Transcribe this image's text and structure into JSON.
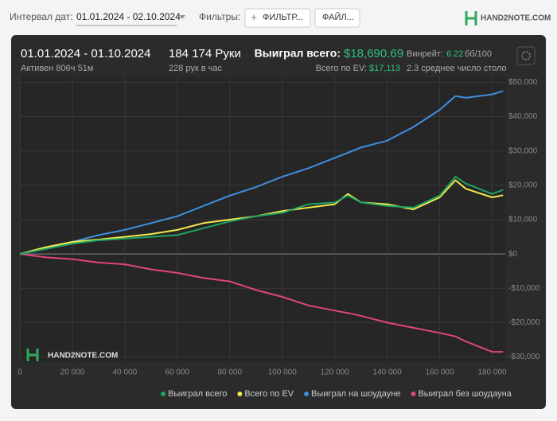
{
  "toolbar": {
    "interval_label": "Интервал дат:",
    "interval_value": "01.01.2024 - 02.10.2024",
    "filters_label": "Фильтры:",
    "filter_button": "ФИЛЬТР...",
    "file_button": "ФАЙЛ...",
    "logo": "HAND2NOTE.COM"
  },
  "header": {
    "date_range": "01.01.2024 - 01.10.2024",
    "active": "Активен 806ч 51м",
    "hands": "184 174 Руки",
    "rate": "228 рук в час",
    "won_label": "Выиграл всего:",
    "won_value": "$18,690.69",
    "ev_label": "Всего по EV:",
    "ev_value": "$17,113",
    "winrate_label": "Винрейт:",
    "winrate_value": "6.22",
    "winrate_unit": "бб/100",
    "tables": "2.3 среднее число столо"
  },
  "watermark": "HAND2NOTE.COM",
  "chart_data": {
    "type": "line",
    "x": [
      0,
      10000,
      20000,
      30000,
      40000,
      50000,
      60000,
      70000,
      80000,
      90000,
      100000,
      110000,
      120000,
      125000,
      130000,
      140000,
      150000,
      160000,
      166000,
      170000,
      180000,
      184174
    ],
    "series": [
      {
        "name": "Выиграл всего",
        "color": "#1fa463",
        "values": [
          0,
          1500,
          3000,
          4000,
          4500,
          5000,
          5500,
          7500,
          9500,
          11000,
          12000,
          14500,
          15000,
          17000,
          15000,
          14000,
          13500,
          17000,
          22500,
          20500,
          17500,
          18690.69
        ]
      },
      {
        "name": "Всего по EV",
        "color": "#f2e94e",
        "values": [
          0,
          2000,
          3500,
          4200,
          5000,
          5800,
          7000,
          9000,
          10000,
          11000,
          12500,
          13500,
          14500,
          17500,
          15000,
          14500,
          13000,
          16500,
          21500,
          19000,
          16500,
          17113
        ]
      },
      {
        "name": "Выиграл на шоудауне",
        "color": "#3f8fde",
        "values": [
          0,
          1500,
          3500,
          5500,
          7000,
          9000,
          11000,
          14000,
          17000,
          19500,
          22500,
          25000,
          28000,
          29500,
          31000,
          33000,
          37000,
          42000,
          46000,
          45500,
          46500,
          47500
        ]
      },
      {
        "name": "Выиграл без шоудауна",
        "color": "#e0457b",
        "values": [
          0,
          -1000,
          -1500,
          -2500,
          -3000,
          -4500,
          -5500,
          -7000,
          -8000,
          -10500,
          -12500,
          -15000,
          -16500,
          -17200,
          -18000,
          -20000,
          -21500,
          -23000,
          -24000,
          -25500,
          -28500,
          -28500
        ]
      }
    ],
    "xlim": [
      0,
      185000
    ],
    "ylim": [
      -31500,
      51500
    ],
    "xticks": [
      0,
      {
        "value": 20000,
        "label": "20 000"
      },
      {
        "value": 40000,
        "label": "40 000"
      },
      {
        "value": 60000,
        "label": "60 000"
      },
      {
        "value": 80000,
        "label": "80 000"
      },
      {
        "value": 100000,
        "label": "100 000"
      },
      {
        "value": 120000,
        "label": "120 000"
      },
      {
        "value": 140000,
        "label": "140 000"
      },
      {
        "value": 160000,
        "label": "160 000"
      },
      {
        "value": 180000,
        "label": "180 000"
      }
    ],
    "yticks": [
      {
        "value": -30000,
        "label": "-$30,000"
      },
      {
        "value": -20000,
        "label": "-$20,000"
      },
      {
        "value": -10000,
        "label": "-$10,000"
      },
      {
        "value": 0,
        "label": "$0"
      },
      {
        "value": 10000,
        "label": "$10,000"
      },
      {
        "value": 20000,
        "label": "$20,000"
      },
      {
        "value": 30000,
        "label": "$30,000"
      },
      {
        "value": 40000,
        "label": "$40,000"
      },
      {
        "value": 50000,
        "label": "$50,000"
      }
    ],
    "grid": true,
    "legend": "bottom"
  }
}
